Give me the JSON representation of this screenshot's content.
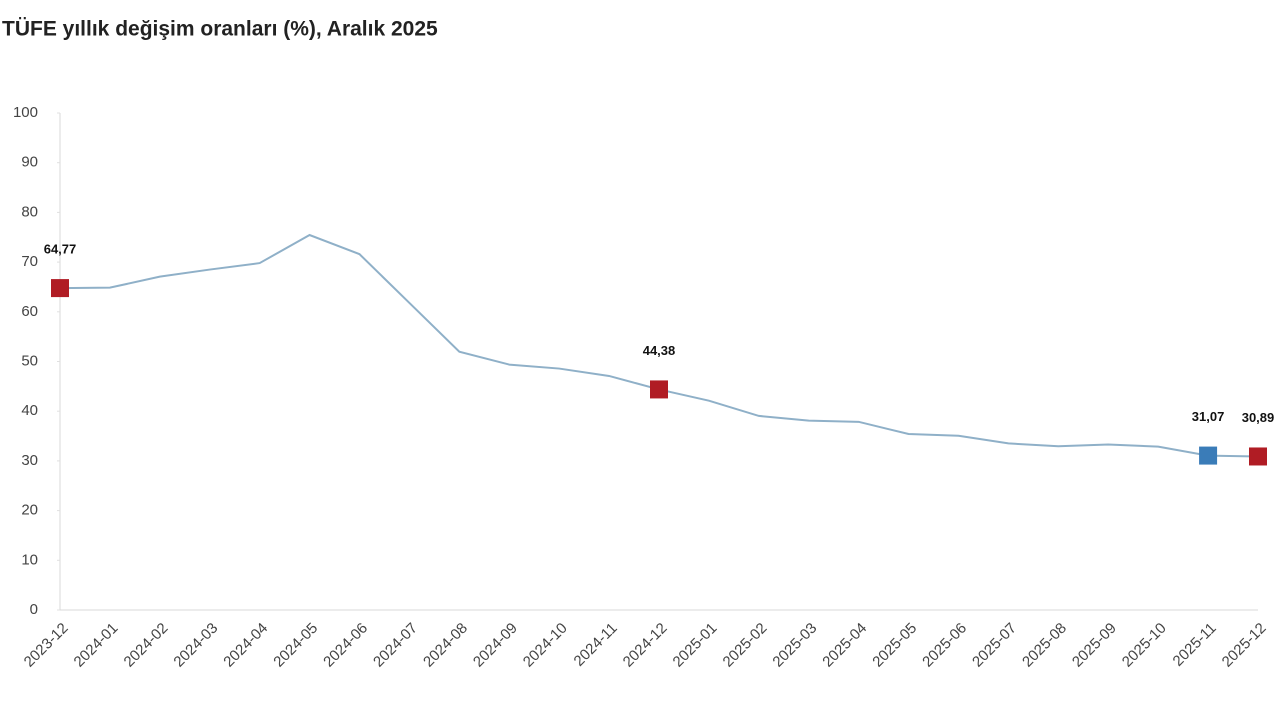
{
  "chart_data": {
    "type": "line",
    "title": "TÜFE yıllık değişim oranları (%), Aralık 2025",
    "categories": [
      "2023-12",
      "2024-01",
      "2024-02",
      "2024-03",
      "2024-04",
      "2024-05",
      "2024-06",
      "2024-07",
      "2024-08",
      "2024-09",
      "2024-10",
      "2024-11",
      "2024-12",
      "2025-01",
      "2025-02",
      "2025-03",
      "2025-04",
      "2025-05",
      "2025-06",
      "2025-07",
      "2025-08",
      "2025-09",
      "2025-10",
      "2025-11",
      "2025-12"
    ],
    "values": [
      64.77,
      64.86,
      67.07,
      68.5,
      69.8,
      75.45,
      71.6,
      61.78,
      51.97,
      49.38,
      48.58,
      47.09,
      44.38,
      42.12,
      39.05,
      38.1,
      37.86,
      35.41,
      35.05,
      33.52,
      32.95,
      33.29,
      32.87,
      31.07,
      30.89
    ],
    "value_labels": [
      "64,77",
      null,
      null,
      null,
      null,
      null,
      null,
      null,
      null,
      null,
      null,
      null,
      "44,38",
      null,
      null,
      null,
      null,
      null,
      null,
      null,
      null,
      null,
      null,
      "31,07",
      "30,89"
    ],
    "color": "#8fb0c8",
    "marker_colors": [
      "#b01c24",
      null,
      null,
      null,
      null,
      null,
      null,
      null,
      null,
      null,
      null,
      null,
      "#b01c24",
      null,
      null,
      null,
      null,
      null,
      null,
      null,
      null,
      null,
      null,
      "#3a7cb8",
      "#b01c24"
    ],
    "ylim": [
      0,
      100
    ],
    "yticks": [
      0,
      10,
      20,
      30,
      40,
      50,
      60,
      70,
      80,
      90,
      100
    ],
    "grid": false
  }
}
